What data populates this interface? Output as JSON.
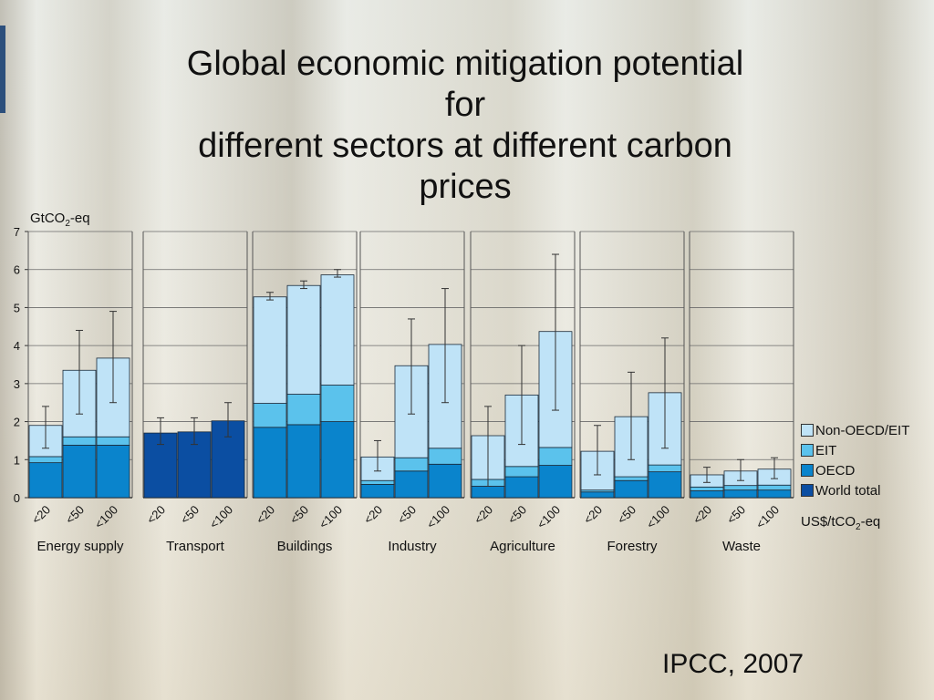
{
  "slide": {
    "title": "Global economic mitigation potential\nfor\ndifferent sectors at different carbon\nprices",
    "source": "IPCC, 2007"
  },
  "colors": {
    "non_oecd_eit": "#bfe3f7",
    "eit": "#5bc2ec",
    "oecd": "#0a84cc",
    "world_total": "#0b4ea2"
  },
  "chart_data": {
    "type": "bar",
    "stacked": true,
    "ylabel_main": "GtCO",
    "ylabel_sub": "2",
    "ylabel_tail": "-eq",
    "xunit_main": "US$/tCO",
    "xunit_sub": "2",
    "xunit_tail": "-eq",
    "ylim": [
      0,
      7
    ],
    "yticks": [
      0,
      1,
      2,
      3,
      4,
      5,
      6,
      7
    ],
    "grid": true,
    "legend_position": "right",
    "legend": [
      "Non-OECD/EIT",
      "EIT",
      "OECD",
      "World total"
    ],
    "price_categories": [
      "<20",
      "<50",
      "<100"
    ],
    "sectors": [
      {
        "name": "Energy supply",
        "bars": [
          {
            "oecd": 0.92,
            "eit": 0.16,
            "non_oecd_eit": 0.82,
            "err": [
              1.3,
              2.4
            ]
          },
          {
            "oecd": 1.38,
            "eit": 0.22,
            "non_oecd_eit": 1.75,
            "err": [
              2.2,
              4.4
            ]
          },
          {
            "oecd": 1.38,
            "eit": 0.22,
            "non_oecd_eit": 2.07,
            "err": [
              2.5,
              4.9
            ]
          }
        ]
      },
      {
        "name": "Transport",
        "bars": [
          {
            "world_total": 1.7,
            "err": [
              1.4,
              2.1
            ]
          },
          {
            "world_total": 1.73,
            "err": [
              1.4,
              2.1
            ]
          },
          {
            "world_total": 2.02,
            "err": [
              1.6,
              2.5
            ]
          }
        ]
      },
      {
        "name": "Buildings",
        "bars": [
          {
            "oecd": 1.85,
            "eit": 0.63,
            "non_oecd_eit": 2.8,
            "err": [
              5.2,
              5.4
            ]
          },
          {
            "oecd": 1.92,
            "eit": 0.8,
            "non_oecd_eit": 2.86,
            "err": [
              5.5,
              5.7
            ]
          },
          {
            "oecd": 2.0,
            "eit": 0.96,
            "non_oecd_eit": 2.9,
            "err": [
              5.8,
              6.0
            ]
          }
        ]
      },
      {
        "name": "Industry",
        "bars": [
          {
            "oecd": 0.35,
            "eit": 0.1,
            "non_oecd_eit": 0.62,
            "err": [
              0.7,
              1.5
            ]
          },
          {
            "oecd": 0.7,
            "eit": 0.35,
            "non_oecd_eit": 2.42,
            "err": [
              2.2,
              4.7
            ]
          },
          {
            "oecd": 0.88,
            "eit": 0.42,
            "non_oecd_eit": 2.73,
            "err": [
              2.5,
              5.5
            ]
          }
        ]
      },
      {
        "name": "Agriculture",
        "bars": [
          {
            "oecd": 0.3,
            "eit": 0.18,
            "non_oecd_eit": 1.15,
            "err": [
              0.3,
              2.4
            ]
          },
          {
            "oecd": 0.55,
            "eit": 0.27,
            "non_oecd_eit": 1.88,
            "err": [
              1.4,
              4.0
            ]
          },
          {
            "oecd": 0.85,
            "eit": 0.47,
            "non_oecd_eit": 3.05,
            "err": [
              2.3,
              6.4
            ]
          }
        ]
      },
      {
        "name": "Forestry",
        "bars": [
          {
            "oecd": 0.15,
            "eit": 0.05,
            "non_oecd_eit": 1.02,
            "err": [
              0.6,
              1.9
            ]
          },
          {
            "oecd": 0.45,
            "eit": 0.1,
            "non_oecd_eit": 1.58,
            "err": [
              1.0,
              3.3
            ]
          },
          {
            "oecd": 0.68,
            "eit": 0.18,
            "non_oecd_eit": 1.9,
            "err": [
              1.3,
              4.2
            ]
          }
        ]
      },
      {
        "name": "Waste",
        "bars": [
          {
            "oecd": 0.18,
            "eit": 0.1,
            "non_oecd_eit": 0.32,
            "err": [
              0.4,
              0.8
            ]
          },
          {
            "oecd": 0.2,
            "eit": 0.12,
            "non_oecd_eit": 0.38,
            "err": [
              0.45,
              1.0
            ]
          },
          {
            "oecd": 0.2,
            "eit": 0.13,
            "non_oecd_eit": 0.42,
            "err": [
              0.5,
              1.05
            ]
          }
        ]
      }
    ]
  }
}
